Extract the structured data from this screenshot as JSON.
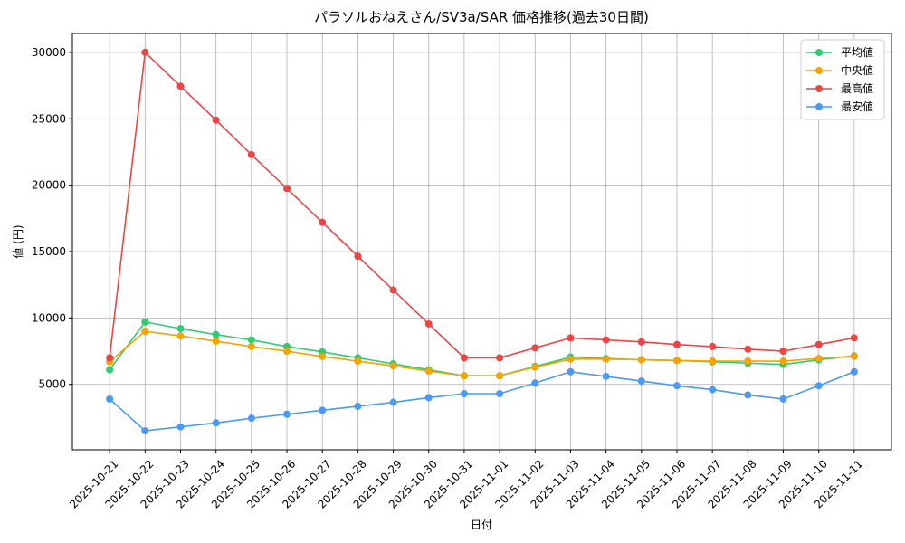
{
  "chart_data": {
    "type": "line",
    "title": "パラソルおねえさん/SV3a/SAR 価格推移(過去30日間)",
    "x_label": "日付",
    "y_label": "値 (円)",
    "categories": [
      "2025-10-21",
      "2025-10-22",
      "2025-10-23",
      "2025-10-24",
      "2025-10-25",
      "2025-10-26",
      "2025-10-27",
      "2025-10-28",
      "2025-10-29",
      "2025-10-30",
      "2025-10-31",
      "2025-11-01",
      "2025-11-02",
      "2025-11-03",
      "2025-11-04",
      "2025-11-05",
      "2025-11-06",
      "2025-11-07",
      "2025-11-08",
      "2025-11-09",
      "2025-11-10",
      "2025-11-11"
    ],
    "series": [
      {
        "name": "平均値",
        "color": "#2ecc71",
        "values": [
          6100,
          9700,
          9200,
          8750,
          8350,
          7850,
          7450,
          7000,
          6550,
          6100,
          5650,
          5650,
          6350,
          7050,
          6950,
          6850,
          6800,
          6700,
          6600,
          6500,
          6850,
          7150
        ]
      },
      {
        "name": "中央値",
        "color": "#f5a300",
        "values": [
          6700,
          9000,
          8650,
          8250,
          7850,
          7500,
          7100,
          6750,
          6400,
          6000,
          5650,
          5650,
          6300,
          6900,
          6900,
          6850,
          6800,
          6750,
          6750,
          6750,
          6950,
          7100
        ]
      },
      {
        "name": "最高値",
        "color": "#ef4444",
        "values": [
          7000,
          30000,
          27450,
          24900,
          22300,
          19750,
          17200,
          14650,
          12100,
          9550,
          7000,
          7000,
          7750,
          8500,
          8350,
          8200,
          8000,
          7850,
          7650,
          7500,
          8000,
          8500
        ]
      },
      {
        "name": "最安値",
        "color": "#4a9af5",
        "values": [
          3900,
          1500,
          1800,
          2100,
          2450,
          2750,
          3050,
          3350,
          3650,
          4000,
          4300,
          4300,
          5100,
          5950,
          5600,
          5250,
          4900,
          4600,
          4200,
          3900,
          4900,
          5950
        ]
      }
    ],
    "ylim": [
      75,
      31425
    ],
    "yticks": [
      5000,
      10000,
      15000,
      20000,
      25000,
      30000
    ],
    "grid": true,
    "legend": "upper right"
  }
}
